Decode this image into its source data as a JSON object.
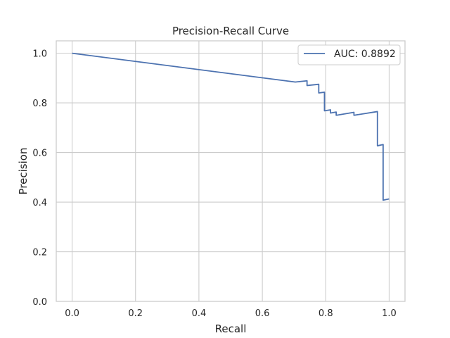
{
  "chart_data": {
    "type": "line",
    "title": "Precision-Recall Curve",
    "xlabel": "Recall",
    "ylabel": "Precision",
    "xlim": [
      -0.05,
      1.05
    ],
    "ylim": [
      0.0,
      1.05
    ],
    "xticks": [
      0.0,
      0.2,
      0.4,
      0.6,
      0.8,
      1.0
    ],
    "xtick_labels": [
      "0.0",
      "0.2",
      "0.4",
      "0.6",
      "0.8",
      "1.0"
    ],
    "yticks": [
      0.0,
      0.2,
      0.4,
      0.6,
      0.8,
      1.0
    ],
    "ytick_labels": [
      "0.0",
      "0.2",
      "0.4",
      "0.6",
      "0.8",
      "1.0"
    ],
    "grid": true,
    "legend": {
      "position": "top-right",
      "entries": [
        "AUC: 0.8892"
      ]
    },
    "series": [
      {
        "name": "AUC: 0.8892",
        "color": "#4c72b0",
        "x": [
          0.0,
          0.704,
          0.741,
          0.741,
          0.778,
          0.778,
          0.796,
          0.796,
          0.815,
          0.815,
          0.833,
          0.833,
          0.889,
          0.889,
          0.963,
          0.963,
          0.981,
          0.981,
          1.0
        ],
        "y": [
          1.0,
          0.884,
          0.889,
          0.87,
          0.875,
          0.84,
          0.843,
          0.768,
          0.772,
          0.759,
          0.763,
          0.75,
          0.762,
          0.75,
          0.765,
          0.627,
          0.632,
          0.408,
          0.413
        ]
      }
    ]
  }
}
